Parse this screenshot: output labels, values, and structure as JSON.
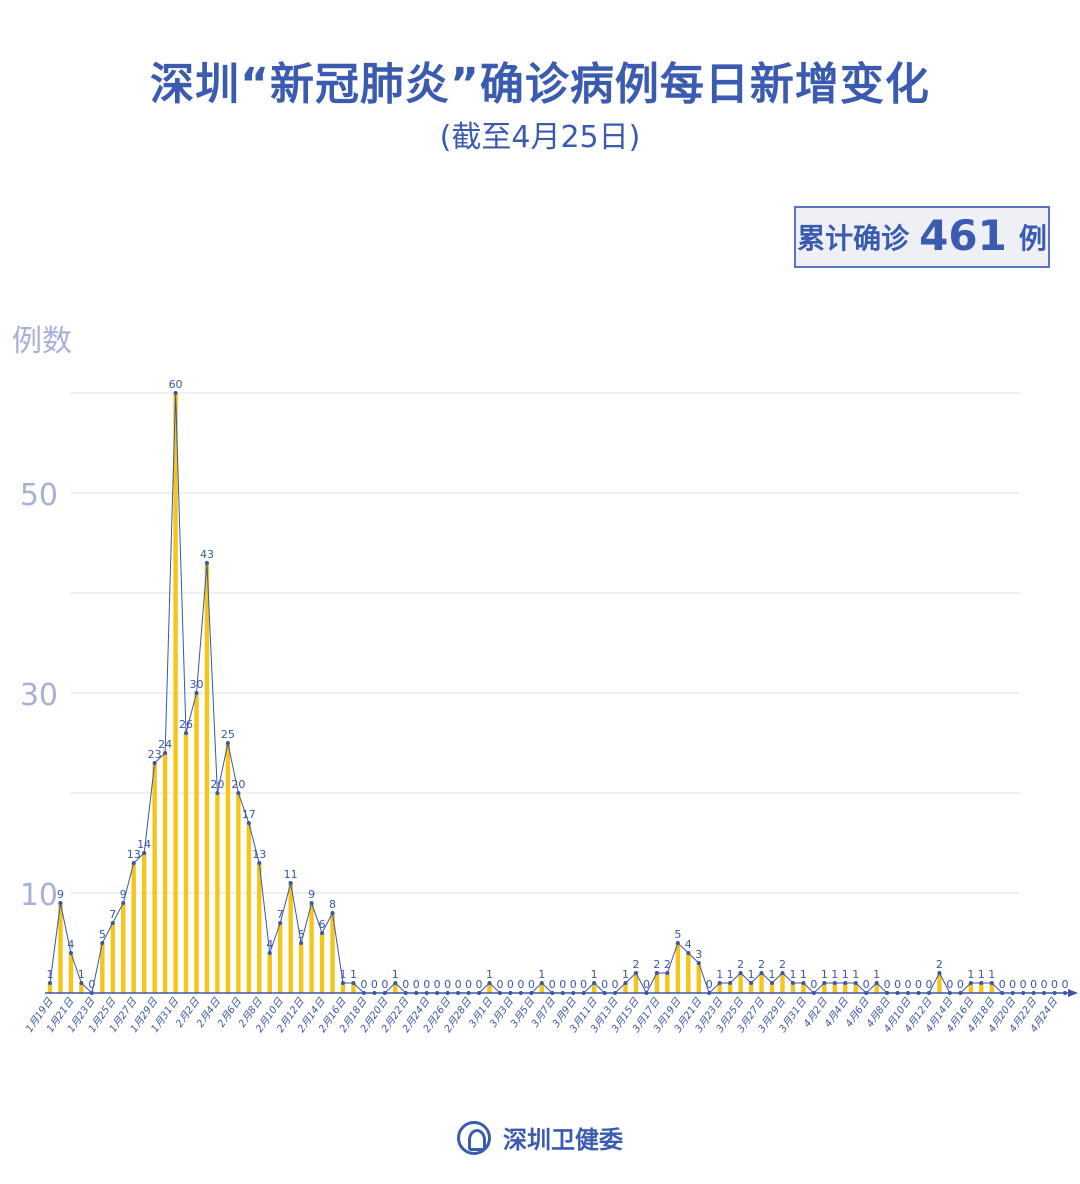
{
  "header": {
    "title": "深圳“新冠肺炎”确诊病例每日新增变化",
    "subtitle": "(截至4月25日)"
  },
  "summary": {
    "label": "累计确诊",
    "value": "461",
    "unit": "例"
  },
  "footer": {
    "org": "深圳卫健委"
  },
  "colors": {
    "title": "#3a5bb0",
    "bar": "#f5c518",
    "line": "#3b56a8",
    "axis_label": "#a8b0d8",
    "grid": "#e2e2e2"
  },
  "chart_data": {
    "type": "bar",
    "overlay": "line",
    "title": "深圳“新冠肺炎”确诊病例每日新增变化",
    "ylabel": "例数",
    "xlabel": "",
    "ylim": [
      0,
      60
    ],
    "y_tick_labels": [
      10,
      30,
      50
    ],
    "gridlines": [
      10,
      20,
      30,
      40,
      50,
      60
    ],
    "grid": true,
    "x_tick_every": 2,
    "categories": [
      "1月19日",
      "1月20日",
      "1月21日",
      "1月22日",
      "1月23日",
      "1月24日",
      "1月25日",
      "1月26日",
      "1月27日",
      "1月28日",
      "1月29日",
      "1月30日",
      "1月31日",
      "2月1日",
      "2月2日",
      "2月3日",
      "2月4日",
      "2月5日",
      "2月6日",
      "2月7日",
      "2月8日",
      "2月9日",
      "2月10日",
      "2月11日",
      "2月12日",
      "2月13日",
      "2月14日",
      "2月15日",
      "2月16日",
      "2月17日",
      "2月18日",
      "2月19日",
      "2月20日",
      "2月21日",
      "2月22日",
      "2月23日",
      "2月24日",
      "2月25日",
      "2月26日",
      "2月27日",
      "2月28日",
      "2月29日",
      "3月1日",
      "3月2日",
      "3月3日",
      "3月4日",
      "3月5日",
      "3月6日",
      "3月7日",
      "3月8日",
      "3月9日",
      "3月10日",
      "3月11日",
      "3月12日",
      "3月13日",
      "3月14日",
      "3月15日",
      "3月16日",
      "3月17日",
      "3月18日",
      "3月19日",
      "3月20日",
      "3月21日",
      "3月22日",
      "3月23日",
      "3月24日",
      "3月25日",
      "3月26日",
      "3月27日",
      "3月28日",
      "3月29日",
      "3月30日",
      "3月31日",
      "4月1日",
      "4月2日",
      "4月3日",
      "4月4日",
      "4月5日",
      "4月6日",
      "4月7日",
      "4月8日",
      "4月9日",
      "4月10日",
      "4月11日",
      "4月12日",
      "4月13日",
      "4月14日",
      "4月15日",
      "4月16日",
      "4月17日",
      "4月18日",
      "4月19日",
      "4月20日",
      "4月21日",
      "4月22日",
      "4月23日",
      "4月24日",
      "4月25日"
    ],
    "values": [
      1,
      9,
      4,
      1,
      0,
      5,
      7,
      9,
      13,
      14,
      23,
      24,
      60,
      26,
      30,
      43,
      20,
      25,
      20,
      17,
      13,
      4,
      7,
      11,
      5,
      9,
      6,
      8,
      1,
      1,
      0,
      0,
      0,
      1,
      0,
      0,
      0,
      0,
      0,
      0,
      0,
      0,
      1,
      0,
      0,
      0,
      0,
      1,
      0,
      0,
      0,
      0,
      1,
      0,
      0,
      1,
      2,
      0,
      2,
      2,
      5,
      4,
      3,
      0,
      1,
      1,
      2,
      1,
      2,
      1,
      2,
      1,
      1,
      0,
      1,
      1,
      1,
      1,
      0,
      1,
      0,
      0,
      0,
      0,
      0,
      2,
      0,
      0,
      1,
      1,
      1,
      0,
      0,
      0,
      0,
      0,
      0,
      0
    ]
  }
}
